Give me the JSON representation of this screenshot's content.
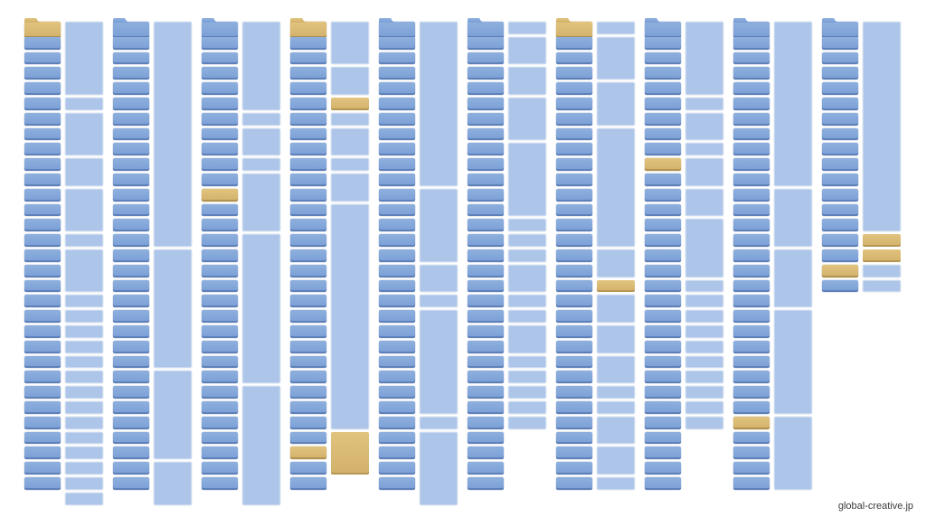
{
  "credit": {
    "text": "global-creative.jp"
  },
  "colors": {
    "folder_blue": "#7a9fd6",
    "doc_blue": "#adc5e8",
    "highlight_gold": "#d9b96f",
    "background": "#ffffff"
  },
  "icons": {
    "folder": "folder-icon",
    "document": "document-block-icon"
  },
  "columns": [
    {
      "folders": 31,
      "gold_folders": [
        0
      ],
      "tab_top": true,
      "docs": [
        5,
        1,
        3,
        2,
        3,
        1,
        3,
        1,
        1,
        1,
        1,
        1,
        1,
        1,
        1,
        1,
        1,
        1,
        1,
        1,
        1
      ]
    },
    {
      "folders": 31,
      "gold_folders": [],
      "tab_top": true,
      "docs": [
        15,
        8,
        6,
        3
      ]
    },
    {
      "folders": 31,
      "gold_folders": [
        11
      ],
      "tab_top": true,
      "docs": [
        6,
        1,
        2,
        1,
        4,
        10,
        8
      ]
    },
    {
      "folders": 31,
      "gold_folders": [
        0,
        28
      ],
      "tab_top": true,
      "docs": [
        3,
        2,
        1,
        1,
        2,
        1,
        2,
        15,
        3
      ],
      "gold_docs": [
        2,
        8
      ]
    },
    {
      "folders": 31,
      "gold_folders": [],
      "tab_top": true,
      "docs": [
        11,
        5,
        2,
        1,
        7,
        1,
        5
      ]
    },
    {
      "folders": 31,
      "gold_folders": [],
      "tab_top": true,
      "docs": [
        1,
        2,
        2,
        3,
        5,
        1,
        1,
        1,
        2,
        1,
        1,
        2,
        1,
        1,
        1,
        1,
        1
      ]
    },
    {
      "folders": 31,
      "gold_folders": [
        0
      ],
      "tab_top": true,
      "docs": [
        1,
        3,
        3,
        8,
        2,
        1,
        2,
        2,
        2,
        1,
        1,
        2,
        2,
        1
      ],
      "gold_docs": [
        5
      ]
    },
    {
      "folders": 31,
      "gold_folders": [
        9
      ],
      "tab_top": true,
      "docs": [
        5,
        1,
        2,
        1,
        2,
        2,
        4,
        1,
        1,
        1,
        1,
        1,
        1,
        1,
        1,
        1,
        1
      ]
    },
    {
      "folders": 31,
      "gold_folders": [
        26
      ],
      "tab_top": true,
      "docs": [
        11,
        4,
        4,
        7,
        5
      ]
    },
    {
      "folders": 18,
      "gold_folders": [
        16
      ],
      "tab_top": true,
      "docs": [
        14,
        1,
        1,
        1,
        1
      ],
      "gold_docs": [
        1,
        2
      ]
    }
  ]
}
